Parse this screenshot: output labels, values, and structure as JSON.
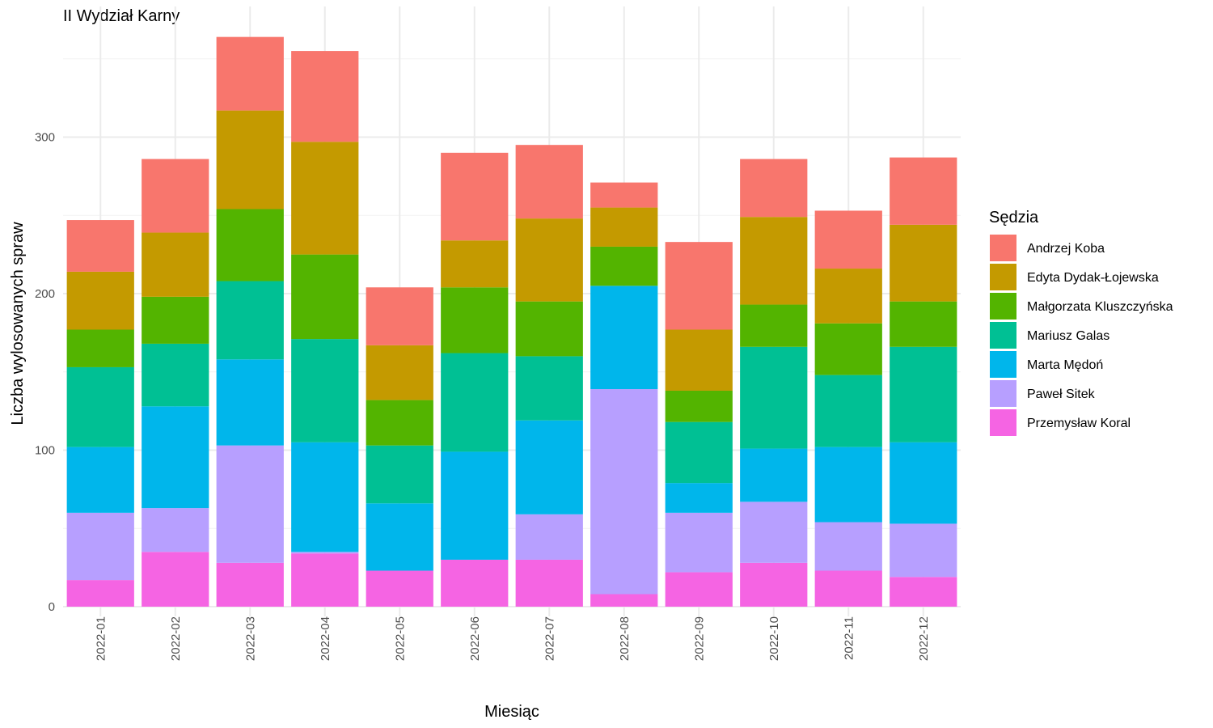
{
  "chart_data": {
    "type": "bar",
    "stacked": true,
    "title": "II Wydział Karny",
    "xlabel": "Miesiąc",
    "ylabel": "Liczba wylosowanych spraw",
    "ylim": [
      0,
      365
    ],
    "yticks": [
      0,
      100,
      200,
      300
    ],
    "grid": true,
    "legend": {
      "title": "Sędzia",
      "position": "right"
    },
    "categories": [
      "2022-01",
      "2022-02",
      "2022-03",
      "2022-04",
      "2022-05",
      "2022-06",
      "2022-07",
      "2022-08",
      "2022-09",
      "2022-10",
      "2022-11",
      "2022-12"
    ],
    "series": [
      {
        "name": "Przemysław Koral",
        "color": "#F564E3",
        "values": [
          17,
          35,
          28,
          34,
          23,
          30,
          30,
          8,
          22,
          28,
          23,
          19
        ]
      },
      {
        "name": "Paweł Sitek",
        "color": "#B79FFF",
        "values": [
          43,
          28,
          75,
          1,
          0,
          0,
          29,
          131,
          38,
          39,
          31,
          34
        ]
      },
      {
        "name": "Marta Mędoń",
        "color": "#00B6EB",
        "values": [
          42,
          65,
          55,
          70,
          43,
          69,
          60,
          66,
          19,
          34,
          48,
          52
        ]
      },
      {
        "name": "Mariusz Galas",
        "color": "#00C094",
        "values": [
          51,
          40,
          50,
          66,
          37,
          63,
          41,
          0,
          39,
          65,
          46,
          61
        ]
      },
      {
        "name": "Małgorzata Kluszczyńska",
        "color": "#53B400",
        "values": [
          24,
          30,
          46,
          54,
          29,
          42,
          35,
          25,
          20,
          27,
          33,
          29
        ]
      },
      {
        "name": "Edyta Dydak-Łojewska",
        "color": "#C49A00",
        "values": [
          37,
          41,
          63,
          72,
          35,
          30,
          53,
          25,
          39,
          56,
          35,
          49
        ]
      },
      {
        "name": "Andrzej Koba",
        "color": "#F8766D",
        "values": [
          33,
          47,
          47,
          58,
          37,
          56,
          47,
          16,
          56,
          37,
          37,
          43
        ]
      }
    ],
    "legend_order": [
      "Andrzej Koba",
      "Edyta Dydak-Łojewska",
      "Małgorzata Kluszczyńska",
      "Mariusz Galas",
      "Marta Mędoń",
      "Paweł Sitek",
      "Przemysław Koral"
    ]
  }
}
